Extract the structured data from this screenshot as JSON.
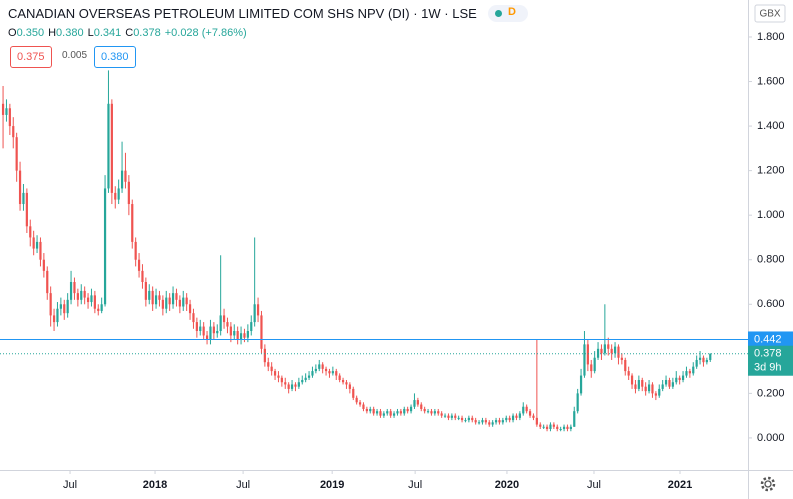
{
  "header": {
    "title": "CANADIAN OVERSEAS PETROLEUM LIMITED COM SHS NPV (DI) · 1W · LSE",
    "badge": "D",
    "ohlc": [
      {
        "key": "O",
        "value": "0.350"
      },
      {
        "key": "H",
        "value": "0.380"
      },
      {
        "key": "L",
        "value": "0.341"
      },
      {
        "key": "C",
        "value": "0.378"
      }
    ],
    "change": "+0.028 (+7.86%)",
    "bid": "0.375",
    "spread": "0.005",
    "ask": "0.380",
    "currency": "GBX"
  },
  "chart_data": {
    "type": "candlestick",
    "up_color": "#26a69a",
    "down_color": "#ef5350",
    "grid": false,
    "xlim": [
      -0.9,
      219.1
    ],
    "xticks": [
      {
        "value": 19.7,
        "label": "Jul"
      },
      {
        "value": 44.7,
        "label": "2018"
      },
      {
        "value": 70.6,
        "label": "Jul"
      },
      {
        "value": 96.8,
        "label": "2019"
      },
      {
        "value": 121.2,
        "label": "Jul"
      },
      {
        "value": 148.2,
        "label": "2020"
      },
      {
        "value": 173.8,
        "label": "Jul"
      },
      {
        "value": 199.1,
        "label": "2021"
      }
    ],
    "ylim": [
      -0.144,
      1.966
    ],
    "yticks": [
      {
        "value": 0,
        "label": "0.000"
      },
      {
        "value": 0.2,
        "label": "0.200"
      },
      {
        "value": 0.4,
        "label": "0.400"
      },
      {
        "value": 0.6,
        "label": "0.600"
      },
      {
        "value": 0.8,
        "label": "0.800"
      },
      {
        "value": 1,
        "label": "1.000"
      },
      {
        "value": 1.2,
        "label": "1.200"
      },
      {
        "value": 1.4,
        "label": "1.400"
      },
      {
        "value": 1.6,
        "label": "1.600"
      },
      {
        "value": 1.8,
        "label": "1.800"
      }
    ],
    "price_line": {
      "value": 0.442,
      "label": "0.442",
      "color": "#2196f3"
    },
    "last_price": {
      "value": 0.378,
      "label": "0.378",
      "countdown": "3d 9h",
      "color": "#26a69a"
    },
    "candles": [
      [
        1.5,
        1.58,
        1.3,
        1.45
      ],
      [
        1.45,
        1.52,
        1.42,
        1.48
      ],
      [
        1.48,
        1.5,
        1.36,
        1.4
      ],
      [
        1.4,
        1.44,
        1.3,
        1.35
      ],
      [
        1.35,
        1.37,
        1.15,
        1.2
      ],
      [
        1.2,
        1.24,
        1.02,
        1.05
      ],
      [
        1.05,
        1.14,
        1.02,
        1.1
      ],
      [
        1.1,
        1.12,
        0.92,
        0.95
      ],
      [
        0.95,
        0.98,
        0.86,
        0.9
      ],
      [
        0.9,
        0.93,
        0.82,
        0.85
      ],
      [
        0.85,
        0.91,
        0.83,
        0.88
      ],
      [
        0.88,
        0.9,
        0.77,
        0.8
      ],
      [
        0.8,
        0.83,
        0.72,
        0.75
      ],
      [
        0.75,
        0.77,
        0.62,
        0.65
      ],
      [
        0.65,
        0.68,
        0.5,
        0.55
      ],
      [
        0.55,
        0.58,
        0.48,
        0.52
      ],
      [
        0.52,
        0.61,
        0.5,
        0.58
      ],
      [
        0.58,
        0.63,
        0.55,
        0.6
      ],
      [
        0.6,
        0.62,
        0.53,
        0.56
      ],
      [
        0.56,
        0.65,
        0.54,
        0.62
      ],
      [
        0.62,
        0.75,
        0.6,
        0.7
      ],
      [
        0.7,
        0.72,
        0.62,
        0.65
      ],
      [
        0.65,
        0.67,
        0.59,
        0.62
      ],
      [
        0.62,
        0.69,
        0.6,
        0.66
      ],
      [
        0.66,
        0.68,
        0.6,
        0.63
      ],
      [
        0.63,
        0.65,
        0.58,
        0.61
      ],
      [
        0.61,
        0.67,
        0.59,
        0.64
      ],
      [
        0.64,
        0.66,
        0.56,
        0.58
      ],
      [
        0.58,
        0.6,
        0.55,
        0.57
      ],
      [
        0.57,
        0.63,
        0.56,
        0.6
      ],
      [
        0.6,
        1.18,
        0.59,
        1.12
      ],
      [
        1.12,
        1.65,
        1.1,
        1.5
      ],
      [
        1.5,
        1.52,
        1.05,
        1.1
      ],
      [
        1.1,
        1.13,
        1.03,
        1.07
      ],
      [
        1.07,
        1.16,
        1.05,
        1.12
      ],
      [
        1.12,
        1.33,
        1.1,
        1.2
      ],
      [
        1.2,
        1.28,
        1.12,
        1.15
      ],
      [
        1.15,
        1.18,
        1.0,
        1.05
      ],
      [
        1.05,
        1.07,
        0.85,
        0.88
      ],
      [
        0.88,
        0.9,
        0.77,
        0.8
      ],
      [
        0.8,
        0.83,
        0.72,
        0.75
      ],
      [
        0.75,
        0.78,
        0.67,
        0.7
      ],
      [
        0.7,
        0.72,
        0.59,
        0.62
      ],
      [
        0.62,
        0.69,
        0.6,
        0.66
      ],
      [
        0.66,
        0.68,
        0.57,
        0.6
      ],
      [
        0.6,
        0.67,
        0.58,
        0.64
      ],
      [
        0.64,
        0.66,
        0.59,
        0.62
      ],
      [
        0.62,
        0.64,
        0.55,
        0.58
      ],
      [
        0.58,
        0.66,
        0.56,
        0.63
      ],
      [
        0.63,
        0.65,
        0.57,
        0.6
      ],
      [
        0.6,
        0.68,
        0.58,
        0.65
      ],
      [
        0.65,
        0.67,
        0.59,
        0.62
      ],
      [
        0.62,
        0.64,
        0.56,
        0.59
      ],
      [
        0.59,
        0.66,
        0.57,
        0.63
      ],
      [
        0.63,
        0.65,
        0.57,
        0.6
      ],
      [
        0.6,
        0.62,
        0.53,
        0.56
      ],
      [
        0.56,
        0.58,
        0.49,
        0.52
      ],
      [
        0.52,
        0.54,
        0.45,
        0.48
      ],
      [
        0.48,
        0.53,
        0.46,
        0.5
      ],
      [
        0.5,
        0.52,
        0.44,
        0.46
      ],
      [
        0.46,
        0.48,
        0.42,
        0.44
      ],
      [
        0.44,
        0.53,
        0.42,
        0.5
      ],
      [
        0.5,
        0.52,
        0.44,
        0.47
      ],
      [
        0.47,
        0.51,
        0.45,
        0.48
      ],
      [
        0.48,
        0.82,
        0.46,
        0.55
      ],
      [
        0.55,
        0.58,
        0.49,
        0.52
      ],
      [
        0.52,
        0.54,
        0.47,
        0.5
      ],
      [
        0.5,
        0.52,
        0.43,
        0.46
      ],
      [
        0.46,
        0.51,
        0.44,
        0.48
      ],
      [
        0.48,
        0.5,
        0.42,
        0.44
      ],
      [
        0.44,
        0.5,
        0.42,
        0.47
      ],
      [
        0.47,
        0.49,
        0.43,
        0.45
      ],
      [
        0.45,
        0.51,
        0.43,
        0.48
      ],
      [
        0.48,
        0.55,
        0.46,
        0.52
      ],
      [
        0.52,
        0.9,
        0.5,
        0.6
      ],
      [
        0.6,
        0.63,
        0.52,
        0.55
      ],
      [
        0.55,
        0.57,
        0.38,
        0.4
      ],
      [
        0.4,
        0.42,
        0.32,
        0.34
      ],
      [
        0.34,
        0.36,
        0.3,
        0.32
      ],
      [
        0.32,
        0.34,
        0.28,
        0.3
      ],
      [
        0.3,
        0.31,
        0.26,
        0.28
      ],
      [
        0.28,
        0.3,
        0.25,
        0.27
      ],
      [
        0.27,
        0.28,
        0.23,
        0.25
      ],
      [
        0.25,
        0.27,
        0.22,
        0.24
      ],
      [
        0.24,
        0.25,
        0.2,
        0.22
      ],
      [
        0.22,
        0.26,
        0.21,
        0.24
      ],
      [
        0.24,
        0.25,
        0.21,
        0.23
      ],
      [
        0.23,
        0.27,
        0.22,
        0.25
      ],
      [
        0.25,
        0.28,
        0.24,
        0.26
      ],
      [
        0.26,
        0.29,
        0.25,
        0.27
      ],
      [
        0.27,
        0.3,
        0.26,
        0.28
      ],
      [
        0.28,
        0.32,
        0.27,
        0.3
      ],
      [
        0.3,
        0.33,
        0.29,
        0.31
      ],
      [
        0.31,
        0.35,
        0.3,
        0.33
      ],
      [
        0.33,
        0.34,
        0.29,
        0.31
      ],
      [
        0.31,
        0.32,
        0.28,
        0.3
      ],
      [
        0.3,
        0.31,
        0.27,
        0.29
      ],
      [
        0.29,
        0.32,
        0.28,
        0.3
      ],
      [
        0.3,
        0.31,
        0.26,
        0.28
      ],
      [
        0.28,
        0.29,
        0.25,
        0.26
      ],
      [
        0.26,
        0.27,
        0.24,
        0.25
      ],
      [
        0.25,
        0.26,
        0.22,
        0.24
      ],
      [
        0.24,
        0.25,
        0.2,
        0.22
      ],
      [
        0.22,
        0.23,
        0.17,
        0.18
      ],
      [
        0.18,
        0.19,
        0.15,
        0.16
      ],
      [
        0.16,
        0.17,
        0.14,
        0.15
      ],
      [
        0.15,
        0.16,
        0.12,
        0.13
      ],
      [
        0.13,
        0.14,
        0.11,
        0.12
      ],
      [
        0.12,
        0.14,
        0.11,
        0.13
      ],
      [
        0.13,
        0.14,
        0.1,
        0.11
      ],
      [
        0.11,
        0.13,
        0.1,
        0.12
      ],
      [
        0.12,
        0.13,
        0.09,
        0.1
      ],
      [
        0.1,
        0.12,
        0.09,
        0.11
      ],
      [
        0.11,
        0.13,
        0.1,
        0.12
      ],
      [
        0.12,
        0.13,
        0.09,
        0.1
      ],
      [
        0.1,
        0.12,
        0.09,
        0.11
      ],
      [
        0.11,
        0.13,
        0.1,
        0.12
      ],
      [
        0.12,
        0.13,
        0.1,
        0.11
      ],
      [
        0.11,
        0.14,
        0.1,
        0.13
      ],
      [
        0.13,
        0.14,
        0.11,
        0.12
      ],
      [
        0.12,
        0.15,
        0.11,
        0.14
      ],
      [
        0.14,
        0.2,
        0.13,
        0.17
      ],
      [
        0.17,
        0.18,
        0.14,
        0.15
      ],
      [
        0.15,
        0.16,
        0.12,
        0.13
      ],
      [
        0.13,
        0.14,
        0.11,
        0.12
      ],
      [
        0.12,
        0.13,
        0.11,
        0.12
      ],
      [
        0.12,
        0.13,
        0.1,
        0.11
      ],
      [
        0.11,
        0.13,
        0.1,
        0.12
      ],
      [
        0.12,
        0.13,
        0.1,
        0.11
      ],
      [
        0.11,
        0.12,
        0.09,
        0.1
      ],
      [
        0.1,
        0.11,
        0.09,
        0.1
      ],
      [
        0.1,
        0.11,
        0.08,
        0.09
      ],
      [
        0.09,
        0.11,
        0.08,
        0.1
      ],
      [
        0.1,
        0.11,
        0.08,
        0.09
      ],
      [
        0.09,
        0.1,
        0.08,
        0.09
      ],
      [
        0.09,
        0.1,
        0.07,
        0.08
      ],
      [
        0.08,
        0.09,
        0.07,
        0.08
      ],
      [
        0.08,
        0.1,
        0.07,
        0.09
      ],
      [
        0.09,
        0.1,
        0.07,
        0.08
      ],
      [
        0.08,
        0.09,
        0.06,
        0.07
      ],
      [
        0.07,
        0.08,
        0.06,
        0.07
      ],
      [
        0.07,
        0.09,
        0.06,
        0.08
      ],
      [
        0.08,
        0.09,
        0.06,
        0.07
      ],
      [
        0.07,
        0.08,
        0.05,
        0.06
      ],
      [
        0.06,
        0.08,
        0.05,
        0.07
      ],
      [
        0.07,
        0.09,
        0.06,
        0.08
      ],
      [
        0.08,
        0.09,
        0.06,
        0.07
      ],
      [
        0.07,
        0.09,
        0.06,
        0.08
      ],
      [
        0.08,
        0.1,
        0.07,
        0.09
      ],
      [
        0.09,
        0.1,
        0.07,
        0.08
      ],
      [
        0.08,
        0.11,
        0.07,
        0.1
      ],
      [
        0.1,
        0.11,
        0.08,
        0.09
      ],
      [
        0.09,
        0.12,
        0.08,
        0.11
      ],
      [
        0.11,
        0.16,
        0.1,
        0.14
      ],
      [
        0.14,
        0.15,
        0.11,
        0.12
      ],
      [
        0.12,
        0.13,
        0.09,
        0.1
      ],
      [
        0.1,
        0.11,
        0.08,
        0.09
      ],
      [
        0.09,
        0.44,
        0.05,
        0.06
      ],
      [
        0.06,
        0.07,
        0.04,
        0.05
      ],
      [
        0.05,
        0.06,
        0.04,
        0.05
      ],
      [
        0.05,
        0.06,
        0.03,
        0.04
      ],
      [
        0.04,
        0.07,
        0.03,
        0.06
      ],
      [
        0.06,
        0.07,
        0.04,
        0.05
      ],
      [
        0.05,
        0.06,
        0.03,
        0.04
      ],
      [
        0.04,
        0.05,
        0.03,
        0.04
      ],
      [
        0.04,
        0.06,
        0.03,
        0.05
      ],
      [
        0.05,
        0.06,
        0.03,
        0.04
      ],
      [
        0.04,
        0.06,
        0.03,
        0.05
      ],
      [
        0.05,
        0.14,
        0.05,
        0.12
      ],
      [
        0.12,
        0.22,
        0.11,
        0.2
      ],
      [
        0.2,
        0.31,
        0.19,
        0.28
      ],
      [
        0.28,
        0.48,
        0.27,
        0.42
      ],
      [
        0.42,
        0.44,
        0.3,
        0.33
      ],
      [
        0.33,
        0.35,
        0.27,
        0.3
      ],
      [
        0.3,
        0.39,
        0.29,
        0.36
      ],
      [
        0.36,
        0.43,
        0.35,
        0.4
      ],
      [
        0.4,
        0.42,
        0.35,
        0.38
      ],
      [
        0.38,
        0.6,
        0.37,
        0.42
      ],
      [
        0.42,
        0.45,
        0.37,
        0.4
      ],
      [
        0.4,
        0.42,
        0.35,
        0.38
      ],
      [
        0.38,
        0.43,
        0.36,
        0.41
      ],
      [
        0.41,
        0.42,
        0.33,
        0.36
      ],
      [
        0.36,
        0.38,
        0.33,
        0.35
      ],
      [
        0.35,
        0.36,
        0.28,
        0.3
      ],
      [
        0.3,
        0.32,
        0.26,
        0.28
      ],
      [
        0.28,
        0.29,
        0.22,
        0.24
      ],
      [
        0.24,
        0.26,
        0.2,
        0.22
      ],
      [
        0.22,
        0.28,
        0.21,
        0.26
      ],
      [
        0.26,
        0.27,
        0.21,
        0.23
      ],
      [
        0.23,
        0.25,
        0.19,
        0.21
      ],
      [
        0.21,
        0.26,
        0.2,
        0.24
      ],
      [
        0.24,
        0.25,
        0.18,
        0.2
      ],
      [
        0.2,
        0.21,
        0.17,
        0.19
      ],
      [
        0.19,
        0.24,
        0.18,
        0.22
      ],
      [
        0.22,
        0.26,
        0.21,
        0.24
      ],
      [
        0.24,
        0.28,
        0.23,
        0.26
      ],
      [
        0.26,
        0.27,
        0.22,
        0.23
      ],
      [
        0.23,
        0.27,
        0.22,
        0.25
      ],
      [
        0.25,
        0.3,
        0.24,
        0.27
      ],
      [
        0.27,
        0.28,
        0.24,
        0.26
      ],
      [
        0.26,
        0.3,
        0.25,
        0.28
      ],
      [
        0.28,
        0.32,
        0.27,
        0.3
      ],
      [
        0.3,
        0.31,
        0.27,
        0.29
      ],
      [
        0.29,
        0.34,
        0.28,
        0.32
      ],
      [
        0.32,
        0.37,
        0.31,
        0.35
      ],
      [
        0.35,
        0.39,
        0.33,
        0.36
      ],
      [
        0.36,
        0.37,
        0.32,
        0.34
      ],
      [
        0.34,
        0.36,
        0.33,
        0.35
      ],
      [
        0.35,
        0.38,
        0.341,
        0.378
      ]
    ]
  }
}
